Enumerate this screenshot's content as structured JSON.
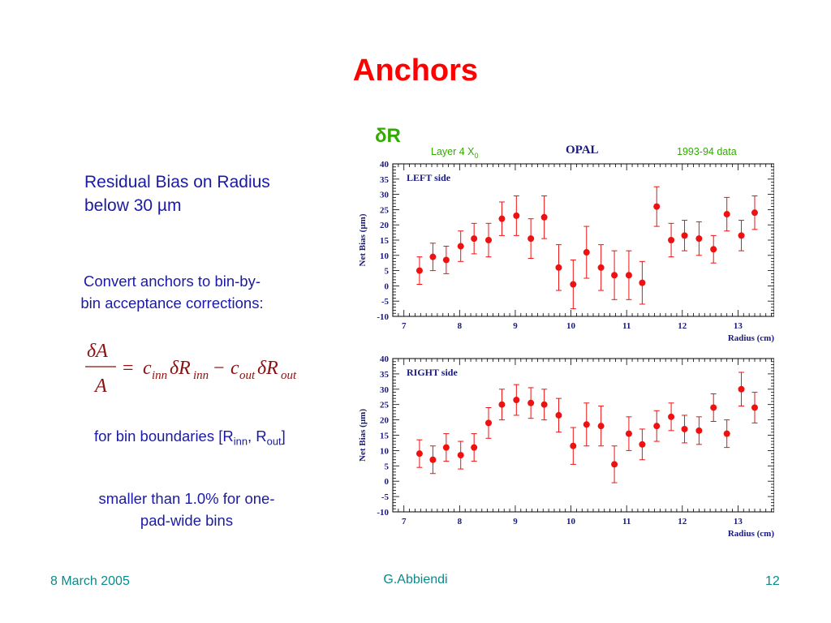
{
  "title": "Anchors",
  "residual_line1": "Residual Bias on Radius",
  "residual_line2": "below 30 µm",
  "convert_text": "Convert anchors to bin-by-bin acceptance corrections:",
  "formula": {
    "numerator": "δA",
    "denominator": "A",
    "eq": "=",
    "c1": "c",
    "c1_sub": "inn",
    "dr1": "δR",
    "dr1_sub": "inn",
    "minus": "−",
    "c2": "c",
    "c2_sub": "out",
    "dr2": "δR",
    "dr2_sub": "out"
  },
  "bins_text": {
    "prefix": "for bin boundaries [R",
    "sub1": "inn",
    "mid": ", R",
    "sub2": "out",
    "suffix": "]"
  },
  "smaller_text": "smaller than 1.0% for one-pad-wide bins",
  "footer": {
    "date": "8 March  2005",
    "author": "G.Abbiendi",
    "page": "12"
  },
  "colors": {
    "title": "#ff0000",
    "body_text": "#1a1aa6",
    "footer": "#0a8a8a",
    "header_green": "#33aa00",
    "axis_navy": "#1a1a80",
    "markers": "#ee1111"
  },
  "plot_header": {
    "delta_r": "δR",
    "layer_prefix": "Layer 4 X",
    "layer_sub": "0",
    "experiment": "OPAL",
    "data_period": "1993-94 data"
  },
  "chart_data": [
    {
      "type": "scatter",
      "panel_label": "LEFT side",
      "xlabel": "Radius (cm)",
      "ylabel": "Net Bias (µm)",
      "xlim": [
        6.8,
        13.65
      ],
      "ylim": [
        -10,
        40
      ],
      "xticks": [
        7,
        8,
        9,
        10,
        11,
        12,
        13
      ],
      "yticks": [
        40,
        35,
        30,
        25,
        20,
        15,
        10,
        5,
        0,
        -5,
        -10
      ],
      "points": [
        {
          "x": 7.28,
          "y": 5,
          "err": 4.5
        },
        {
          "x": 7.52,
          "y": 9.5,
          "err": 4.5
        },
        {
          "x": 7.76,
          "y": 8.5,
          "err": 4.5
        },
        {
          "x": 8.02,
          "y": 13,
          "err": 5
        },
        {
          "x": 8.26,
          "y": 15.5,
          "err": 5
        },
        {
          "x": 8.52,
          "y": 15,
          "err": 5.5
        },
        {
          "x": 8.76,
          "y": 22,
          "err": 5.5
        },
        {
          "x": 9.02,
          "y": 23,
          "err": 6.5
        },
        {
          "x": 9.28,
          "y": 15.5,
          "err": 6.5
        },
        {
          "x": 9.52,
          "y": 22.5,
          "err": 7
        },
        {
          "x": 9.78,
          "y": 6,
          "err": 7.5
        },
        {
          "x": 10.04,
          "y": 0.5,
          "err": 8
        },
        {
          "x": 10.28,
          "y": 11,
          "err": 8.5
        },
        {
          "x": 10.54,
          "y": 6,
          "err": 7.5
        },
        {
          "x": 10.78,
          "y": 3.5,
          "err": 8
        },
        {
          "x": 11.04,
          "y": 3.5,
          "err": 8
        },
        {
          "x": 11.28,
          "y": 1,
          "err": 7
        },
        {
          "x": 11.54,
          "y": 26,
          "err": 6.5
        },
        {
          "x": 11.8,
          "y": 15,
          "err": 5.5
        },
        {
          "x": 12.04,
          "y": 16.5,
          "err": 5
        },
        {
          "x": 12.3,
          "y": 15.5,
          "err": 5.5
        },
        {
          "x": 12.56,
          "y": 12,
          "err": 4.5
        },
        {
          "x": 12.8,
          "y": 23.5,
          "err": 5.5
        },
        {
          "x": 13.06,
          "y": 16.5,
          "err": 5
        },
        {
          "x": 13.3,
          "y": 24,
          "err": 5.5
        }
      ]
    },
    {
      "type": "scatter",
      "panel_label": "RIGHT side",
      "xlabel": "Radius (cm)",
      "ylabel": "Net Bias (µm)",
      "xlim": [
        6.8,
        13.65
      ],
      "ylim": [
        -10,
        40
      ],
      "xticks": [
        7,
        8,
        9,
        10,
        11,
        12,
        13
      ],
      "yticks": [
        40,
        35,
        30,
        25,
        20,
        15,
        10,
        5,
        0,
        -5,
        -10
      ],
      "points": [
        {
          "x": 7.28,
          "y": 9,
          "err": 4.5
        },
        {
          "x": 7.52,
          "y": 7,
          "err": 4.5
        },
        {
          "x": 7.76,
          "y": 11,
          "err": 4.5
        },
        {
          "x": 8.02,
          "y": 8.5,
          "err": 4.5
        },
        {
          "x": 8.26,
          "y": 11,
          "err": 4.5
        },
        {
          "x": 8.52,
          "y": 19,
          "err": 5
        },
        {
          "x": 8.76,
          "y": 25,
          "err": 5
        },
        {
          "x": 9.02,
          "y": 26.5,
          "err": 5
        },
        {
          "x": 9.28,
          "y": 25.5,
          "err": 5
        },
        {
          "x": 9.52,
          "y": 25,
          "err": 5
        },
        {
          "x": 9.78,
          "y": 21.5,
          "err": 5.5
        },
        {
          "x": 10.04,
          "y": 11.5,
          "err": 6
        },
        {
          "x": 10.28,
          "y": 18.5,
          "err": 7
        },
        {
          "x": 10.54,
          "y": 18,
          "err": 6.5
        },
        {
          "x": 10.78,
          "y": 5.5,
          "err": 6
        },
        {
          "x": 11.04,
          "y": 15.5,
          "err": 5.5
        },
        {
          "x": 11.28,
          "y": 12,
          "err": 5
        },
        {
          "x": 11.54,
          "y": 18,
          "err": 5
        },
        {
          "x": 11.8,
          "y": 21,
          "err": 4.5
        },
        {
          "x": 12.04,
          "y": 17,
          "err": 4.5
        },
        {
          "x": 12.3,
          "y": 16.5,
          "err": 4.5
        },
        {
          "x": 12.56,
          "y": 24,
          "err": 4.5
        },
        {
          "x": 12.8,
          "y": 15.5,
          "err": 4.5
        },
        {
          "x": 13.06,
          "y": 30,
          "err": 5.5
        },
        {
          "x": 13.3,
          "y": 24,
          "err": 5
        }
      ]
    }
  ]
}
